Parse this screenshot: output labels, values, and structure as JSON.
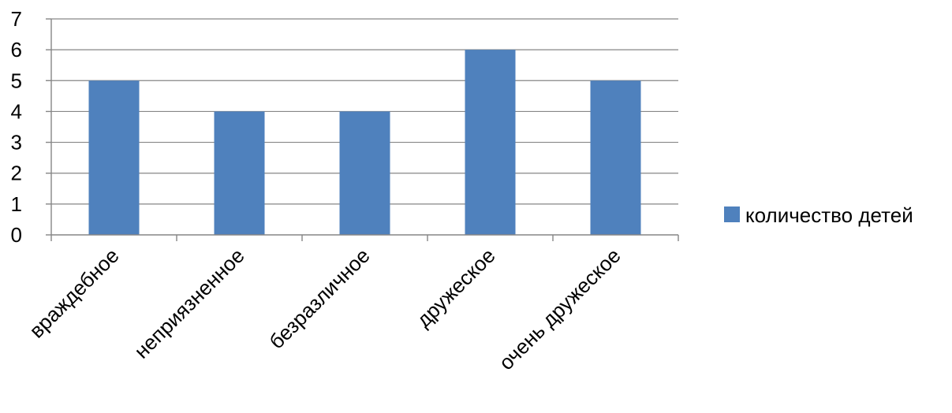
{
  "chart_data": {
    "type": "bar",
    "categories": [
      "враждебное",
      "неприязненное",
      "безразличное",
      "дружеское",
      "очень дружеское"
    ],
    "series": [
      {
        "name": "количество детей",
        "values": [
          5,
          4,
          4,
          6,
          5
        ]
      }
    ],
    "title": "",
    "xlabel": "",
    "ylabel": "",
    "ylim": [
      0,
      7
    ],
    "yticks": [
      "0",
      "1",
      "2",
      "3",
      "4",
      "5",
      "6",
      "7"
    ],
    "grid": true,
    "legend_position": "right",
    "colors": {
      "series": "#4F81BD",
      "grid": "#868686",
      "axis": "#868686",
      "text": "#000000"
    }
  }
}
